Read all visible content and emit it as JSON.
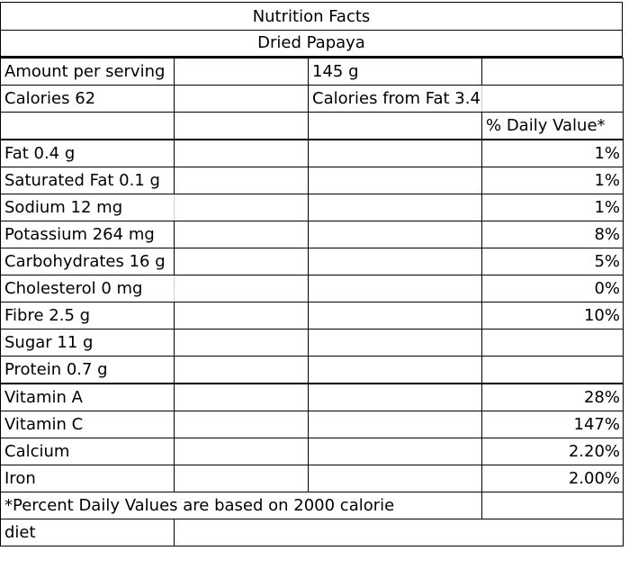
{
  "title": "Nutrition Facts",
  "subtitle": "Dried Papaya",
  "serving": {
    "label": "Amount per serving",
    "value": "145 g"
  },
  "calories": {
    "label": "Calories 62",
    "from_fat": "Calories from Fat 3.4"
  },
  "daily_value_header": "% Daily Value*",
  "nutrients": [
    {
      "label": "Fat 0.4 g",
      "dv": "1%"
    },
    {
      "label": "Saturated Fat 0.1 g",
      "dv": "1%"
    },
    {
      "label": "Sodium 12 mg",
      "dv": "1%"
    },
    {
      "label": "Potassium 264 mg",
      "dv": "8%"
    },
    {
      "label": "Carbohydrates 16 g",
      "dv": "5%"
    },
    {
      "label": "Cholesterol 0 mg",
      "dv": "0%"
    },
    {
      "label": "Fibre 2.5 g",
      "dv": "10%"
    },
    {
      "label": "Sugar 11 g",
      "dv": ""
    },
    {
      "label": "Protein 0.7 g",
      "dv": ""
    }
  ],
  "vitamins": [
    {
      "label": "Vitamin A",
      "dv": "28%"
    },
    {
      "label": "Vitamin C",
      "dv": "147%"
    },
    {
      "label": "Calcium",
      "dv": "2.20%"
    },
    {
      "label": "Iron",
      "dv": "2.00%"
    }
  ],
  "footnote": {
    "line1": "*Percent Daily Values are based on 2000 calorie",
    "line2": "diet"
  }
}
